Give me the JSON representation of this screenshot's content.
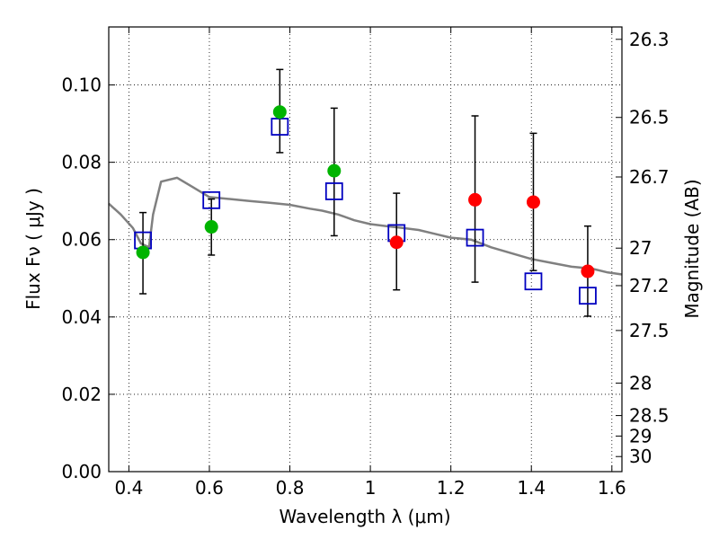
{
  "chart_data": {
    "type": "scatter",
    "title": "",
    "xlabel": "Wavelength  λ (μm)",
    "ylabel": "Flux  Fν  ( μJy )",
    "y2label": "Magnitude (AB)",
    "xlim": [
      0.35,
      1.625
    ],
    "ylim": [
      0.0,
      0.115
    ],
    "grid": true,
    "x_ticks": [
      0.4,
      0.6,
      0.8,
      1.0,
      1.2,
      1.4,
      1.6
    ],
    "x_tick_labels": [
      "0.4",
      "0.6",
      "0.8",
      "1",
      "1.2",
      "1.4",
      "1.6"
    ],
    "y_ticks": [
      0.0,
      0.02,
      0.04,
      0.06,
      0.08,
      0.1
    ],
    "y_tick_labels": [
      "0.00",
      "0.02",
      "0.04",
      "0.06",
      "0.08",
      "0.10"
    ],
    "y2_ticks": [
      {
        "label": "26.3",
        "flux": 0.1118
      },
      {
        "label": "26.5",
        "flux": 0.0916
      },
      {
        "label": "26.7",
        "flux": 0.0762
      },
      {
        "label": "27",
        "flux": 0.0578
      },
      {
        "label": "27.2",
        "flux": 0.0481
      },
      {
        "label": "27.5",
        "flux": 0.0365
      },
      {
        "label": "28",
        "flux": 0.0229
      },
      {
        "label": "28.5",
        "flux": 0.0145
      },
      {
        "label": "29",
        "flux": 0.0092
      },
      {
        "label": "30",
        "flux": 0.0039
      }
    ],
    "colors": {
      "model": "#808080",
      "green": "#00b400",
      "red": "#ff0000",
      "square": "#0000c0",
      "errorbar": "#000000"
    },
    "series": [
      {
        "marker": "line",
        "x": [
          0.35,
          0.38,
          0.41,
          0.43,
          0.45,
          0.46,
          0.48,
          0.52,
          0.56,
          0.6,
          0.65,
          0.7,
          0.75,
          0.8,
          0.85,
          0.88,
          0.92,
          0.96,
          1.0,
          1.04,
          1.08,
          1.12,
          1.16,
          1.2,
          1.25,
          1.3,
          1.35,
          1.4,
          1.45,
          1.5,
          1.55,
          1.59,
          1.625
        ],
        "y": [
          0.0693,
          0.0665,
          0.063,
          0.059,
          0.058,
          0.0665,
          0.075,
          0.076,
          0.0735,
          0.071,
          0.0705,
          0.07,
          0.0695,
          0.069,
          0.068,
          0.0675,
          0.0665,
          0.065,
          0.064,
          0.0635,
          0.063,
          0.0625,
          0.0615,
          0.0605,
          0.06,
          0.058,
          0.0565,
          0.055,
          0.054,
          0.053,
          0.0525,
          0.0515,
          0.051
        ]
      },
      {
        "marker": "square",
        "x": [
          0.435,
          0.605,
          0.775,
          0.91,
          1.065,
          1.26,
          1.405,
          1.54
        ],
        "y": [
          0.0598,
          0.0702,
          0.0892,
          0.0725,
          0.0617,
          0.0605,
          0.0492,
          0.0455
        ]
      },
      {
        "marker": "circle-green",
        "x": [
          0.435,
          0.605,
          0.775,
          0.91
        ],
        "y": [
          0.0567,
          0.0633,
          0.093,
          0.0778
        ]
      },
      {
        "marker": "circle-red",
        "x": [
          1.065,
          1.26,
          1.405,
          1.54
        ],
        "y": [
          0.0593,
          0.0703,
          0.0697,
          0.0518
        ]
      }
    ],
    "error_bars": {
      "x": [
        0.435,
        0.605,
        0.775,
        0.91,
        1.065,
        1.26,
        1.405,
        1.54
      ],
      "y_low": [
        0.046,
        0.056,
        0.0825,
        0.061,
        0.047,
        0.049,
        0.052,
        0.0402
      ],
      "y_high": [
        0.067,
        0.0705,
        0.104,
        0.094,
        0.072,
        0.092,
        0.0875,
        0.0635
      ]
    }
  }
}
